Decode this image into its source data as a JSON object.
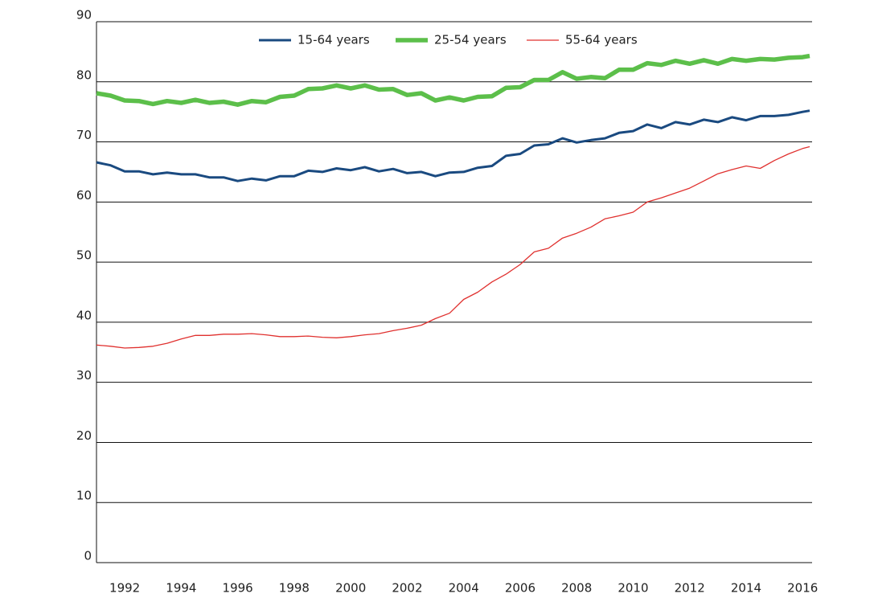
{
  "chart_data": {
    "type": "line",
    "x": [
      1991,
      1991.5,
      1992,
      1992.5,
      1993,
      1993.5,
      1994,
      1994.5,
      1995,
      1995.5,
      1996,
      1996.5,
      1997,
      1997.5,
      1998,
      1998.5,
      1999,
      1999.5,
      2000,
      2000.5,
      2001,
      2001.5,
      2002,
      2002.5,
      2003,
      2003.5,
      2004,
      2004.5,
      2005,
      2005.5,
      2006,
      2006.5,
      2007,
      2007.5,
      2008,
      2008.5,
      2009,
      2009.5,
      2010,
      2010.5,
      2011,
      2011.5,
      2012,
      2012.5,
      2013,
      2013.5,
      2014,
      2014.5,
      2015,
      2015.5,
      2016,
      2016.25
    ],
    "series": [
      {
        "name": "15-64 years",
        "color": "#1a4a80",
        "values": [
          66.6,
          66.1,
          65.1,
          65.1,
          64.6,
          64.9,
          64.6,
          64.6,
          64.1,
          64.1,
          63.5,
          63.9,
          63.6,
          64.3,
          64.3,
          65.2,
          65.0,
          65.6,
          65.3,
          65.8,
          65.1,
          65.5,
          64.8,
          65.0,
          64.3,
          64.9,
          65.0,
          65.7,
          66.0,
          67.7,
          68.0,
          69.4,
          69.6,
          70.6,
          69.9,
          70.3,
          70.6,
          71.5,
          71.8,
          72.9,
          72.3,
          73.3,
          72.9,
          73.7,
          73.3,
          74.1,
          73.6,
          74.3,
          74.3,
          74.5,
          75.0,
          75.2
        ]
      },
      {
        "name": "25-54 years",
        "color": "#5cbf4a",
        "values": [
          78.1,
          77.7,
          76.9,
          76.8,
          76.3,
          76.8,
          76.5,
          77.0,
          76.5,
          76.7,
          76.2,
          76.8,
          76.6,
          77.5,
          77.7,
          78.8,
          78.9,
          79.4,
          78.9,
          79.4,
          78.7,
          78.8,
          77.8,
          78.1,
          76.9,
          77.4,
          76.9,
          77.5,
          77.6,
          79.0,
          79.1,
          80.3,
          80.3,
          81.6,
          80.5,
          80.8,
          80.6,
          82.0,
          82.0,
          83.1,
          82.8,
          83.5,
          83.0,
          83.6,
          83.0,
          83.8,
          83.5,
          83.8,
          83.7,
          84.0,
          84.1,
          84.3
        ]
      },
      {
        "name": "55-64 years",
        "color": "#e0312f",
        "values": [
          36.2,
          36.0,
          35.7,
          35.8,
          36.0,
          36.5,
          37.2,
          37.8,
          37.8,
          38.0,
          38.0,
          38.1,
          37.9,
          37.6,
          37.6,
          37.7,
          37.5,
          37.4,
          37.6,
          37.9,
          38.1,
          38.6,
          39.0,
          39.5,
          40.6,
          41.5,
          43.8,
          45.0,
          46.7,
          48.0,
          49.6,
          51.7,
          52.3,
          54.0,
          54.8,
          55.8,
          57.2,
          57.7,
          58.3,
          60.0,
          60.7,
          61.5,
          62.3,
          63.5,
          64.7,
          65.4,
          66.0,
          65.6,
          66.9,
          68.0,
          68.9,
          69.2
        ]
      }
    ],
    "xlim": [
      1991,
      2016.25
    ],
    "xticks": [
      1992,
      1994,
      1996,
      1998,
      2000,
      2002,
      2004,
      2006,
      2008,
      2010,
      2012,
      2014,
      2016
    ],
    "ylim": [
      0,
      90
    ],
    "yticks": [
      0,
      10,
      20,
      30,
      40,
      50,
      60,
      70,
      80,
      90
    ],
    "grid": true,
    "legend": "top"
  }
}
